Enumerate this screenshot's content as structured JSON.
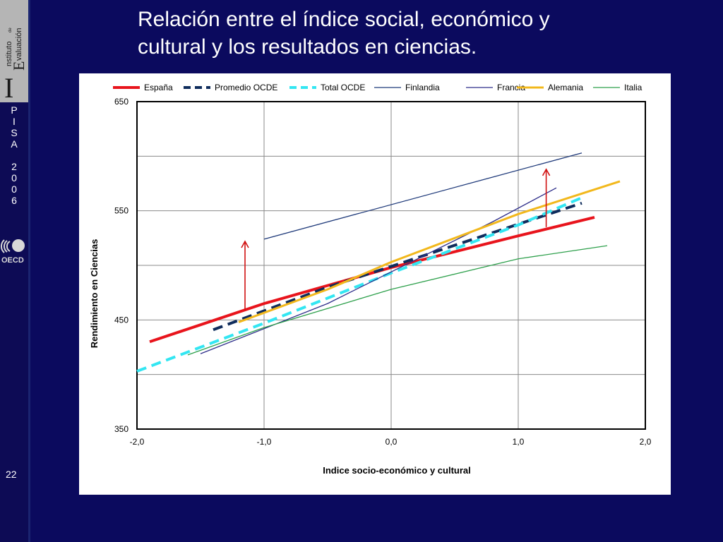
{
  "slide": {
    "title_line1": "Relación entre el índice social, económico y",
    "title_line2": "cultural y los resultados en ciencias.",
    "slide_number": "22",
    "pisa_letters": [
      "P",
      "I",
      "S",
      "A",
      "",
      "2",
      "0",
      "0",
      "6"
    ],
    "oecd_label": "OECD",
    "logo": {
      "big_letter": "I",
      "word1": "nstituto",
      "word_small": "de",
      "word2": "valuación",
      "cap2": "E"
    }
  },
  "colors": {
    "background": "#0b0a5e",
    "espana": "#e8141c",
    "promedio": "#0f2c5c",
    "total": "#33e6f2",
    "finlandia": "#1f3a7a",
    "francia": "#2e2e8a",
    "alemania": "#f2b81c",
    "italia": "#2ea04c",
    "arrow": "#d01010"
  },
  "chart_data": {
    "type": "line",
    "title": "",
    "xlabel": "Indice socio-económico y cultural",
    "ylabel": "Rendimiento en Ciencias",
    "xlim": [
      -2.0,
      2.0
    ],
    "ylim": [
      350,
      650
    ],
    "xticks": [
      "-2,0",
      "-1,0",
      "0,0",
      "1,0",
      "2,0"
    ],
    "xtick_values": [
      -2,
      -1,
      0,
      1,
      2
    ],
    "yticks": [
      "350",
      "450",
      "550",
      "650"
    ],
    "ytick_values": [
      350,
      450,
      550,
      650
    ],
    "grid_y": [
      350,
      400,
      450,
      500,
      550,
      600,
      650
    ],
    "grid": true,
    "legend_position": "top",
    "series": [
      {
        "key": "espana",
        "name": "España",
        "style": "solid-thick",
        "x": [
          -1.9,
          -1.0,
          0.0,
          1.0,
          1.6
        ],
        "y": [
          430,
          465,
          498,
          527,
          544
        ]
      },
      {
        "key": "promedio",
        "name": "Promedio OCDE",
        "style": "dashed-thick",
        "x": [
          -1.4,
          -0.5,
          0.0,
          0.8,
          1.5
        ],
        "y": [
          441,
          480,
          499,
          530,
          557
        ]
      },
      {
        "key": "total",
        "name": "Total OCDE",
        "style": "dashed-thick",
        "x": [
          -2.0,
          -1.0,
          0.0,
          1.0,
          1.5
        ],
        "y": [
          403,
          447,
          493,
          537,
          562
        ]
      },
      {
        "key": "finlandia",
        "name": "Finlandia",
        "style": "solid-thin",
        "x": [
          -1.0,
          1.5
        ],
        "y": [
          524,
          603
        ]
      },
      {
        "key": "francia",
        "name": "Francia",
        "style": "solid-thin",
        "x": [
          -1.5,
          -0.5,
          0.0,
          0.8,
          1.3
        ],
        "y": [
          419,
          465,
          494,
          540,
          571
        ]
      },
      {
        "key": "alemania",
        "name": "Alemania",
        "style": "solid-medium",
        "x": [
          -1.2,
          -0.5,
          0.0,
          1.0,
          1.8
        ],
        "y": [
          448,
          478,
          503,
          547,
          577
        ]
      },
      {
        "key": "italia",
        "name": "Italia",
        "style": "solid-thin",
        "x": [
          -1.6,
          -1.0,
          0.0,
          1.0,
          1.7
        ],
        "y": [
          418,
          443,
          478,
          506,
          518
        ]
      }
    ],
    "arrows": [
      {
        "x": -1.15,
        "y_from": 459,
        "y_to": 522
      },
      {
        "x": 1.22,
        "y_from": 535,
        "y_to": 588
      }
    ]
  }
}
